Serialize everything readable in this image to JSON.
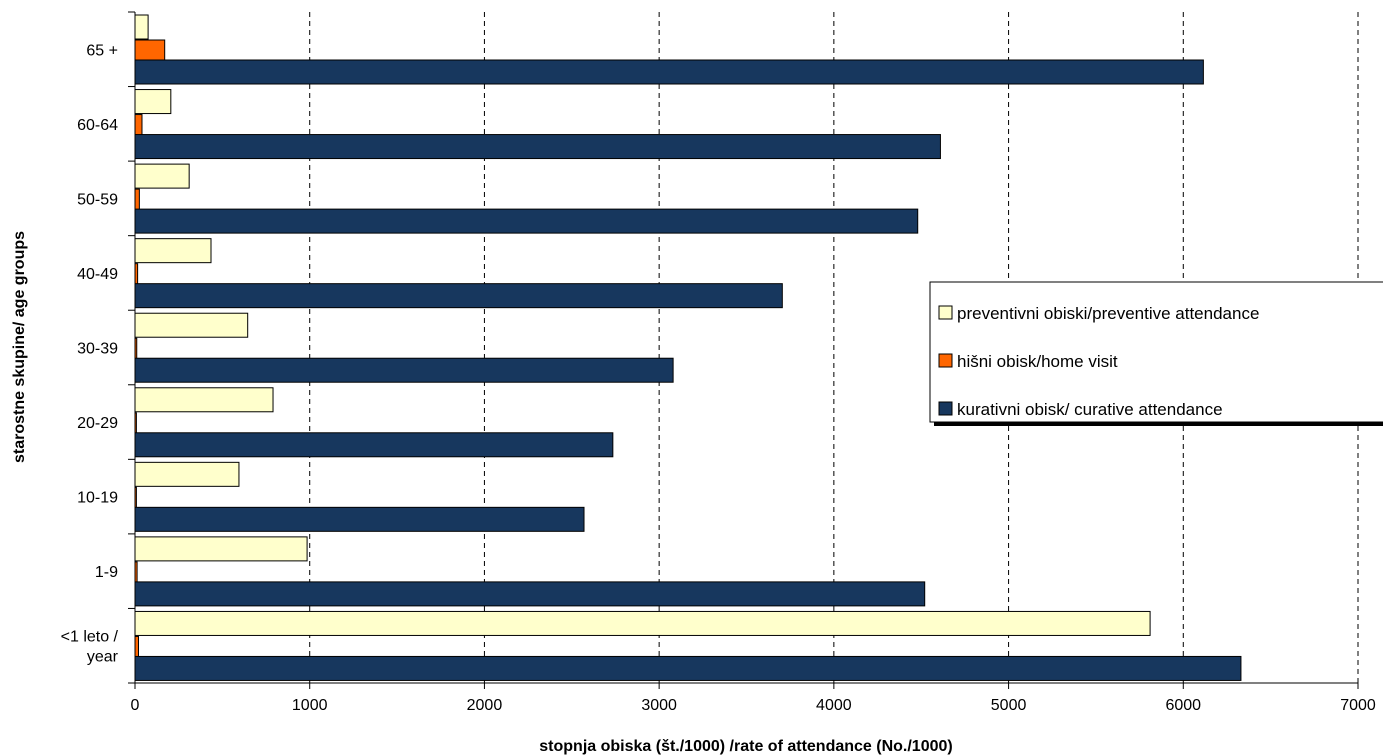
{
  "chart_data": {
    "type": "bar",
    "orientation": "horizontal",
    "categories": [
      "65 +",
      "60-64",
      "50-59",
      "40-49",
      "30-39",
      "20-29",
      "10-19",
      "1-9",
      "<1 leto / year"
    ],
    "series": [
      {
        "name": "preventivni obiski/preventive attendance",
        "color": "#ffffcc",
        "values": [
          75,
          205,
          310,
          435,
          645,
          790,
          595,
          985,
          5810
        ]
      },
      {
        "name": "hišni obisk/home visit",
        "color": "#ff6600",
        "values": [
          170,
          40,
          25,
          15,
          10,
          8,
          8,
          12,
          20
        ]
      },
      {
        "name": "kurativni obisk/ curative attendance",
        "color": "#17375e",
        "values": [
          6115,
          4610,
          4480,
          3705,
          3080,
          2735,
          2570,
          4520,
          6330
        ]
      }
    ],
    "legend_order": [
      0,
      1,
      2
    ],
    "xlabel": "stopnja obiska (št./1000) /rate of attendance (No./1000)",
    "ylabel": "starostne skupine/ age groups",
    "xlim": [
      0,
      7000
    ],
    "xticks": [
      0,
      1000,
      2000,
      3000,
      4000,
      5000,
      6000,
      7000
    ],
    "grid": "vertical dashed",
    "legend_position": "center-right"
  }
}
